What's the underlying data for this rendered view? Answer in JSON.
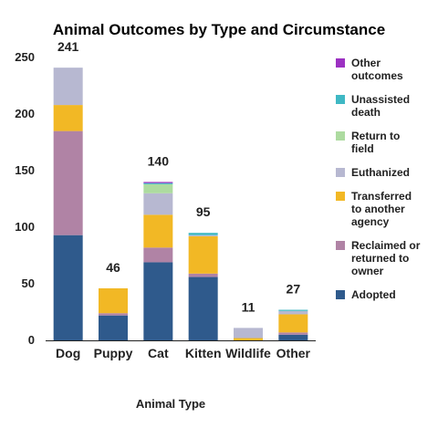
{
  "chart_data": {
    "type": "bar",
    "stacked": true,
    "title": "Animal Outcomes by Type and Circumstance",
    "xlabel": "Animal Type",
    "ylabel": "",
    "ylim": [
      0,
      250
    ],
    "yticks": [
      0,
      50,
      100,
      150,
      200,
      250
    ],
    "grid": false,
    "legend_position": "right",
    "categories": [
      "Dog",
      "Puppy",
      "Cat",
      "Kitten",
      "Wildlife",
      "Other"
    ],
    "totals": [
      241,
      46,
      140,
      95,
      11,
      27
    ],
    "series": [
      {
        "name": "Adopted",
        "color": "#2f5a8c",
        "values": [
          93,
          22,
          69,
          56,
          0,
          5
        ]
      },
      {
        "name": "Reclaimed or returned to owner",
        "color": "#b083a5",
        "values": [
          92,
          2,
          13,
          3,
          0,
          2
        ]
      },
      {
        "name": "Transferred to another agency",
        "color": "#f2b825",
        "values": [
          23,
          22,
          29,
          33,
          2,
          16
        ]
      },
      {
        "name": "Euthanized",
        "color": "#b7b8d1",
        "values": [
          33,
          0,
          19,
          1,
          9,
          3
        ]
      },
      {
        "name": "Return to field",
        "color": "#addba0",
        "values": [
          0,
          0,
          8,
          0,
          0,
          0
        ]
      },
      {
        "name": "Unassisted death",
        "color": "#3fb8c4",
        "values": [
          0,
          0,
          1,
          2,
          0,
          1
        ]
      },
      {
        "name": "Other outcomes",
        "color": "#9c31c2",
        "values": [
          0,
          0,
          1,
          0,
          0,
          0
        ]
      }
    ],
    "legend_order": [
      "Other outcomes",
      "Unassisted death",
      "Return to field",
      "Euthanized",
      "Transferred to another agency",
      "Reclaimed or returned to owner",
      "Adopted"
    ]
  }
}
